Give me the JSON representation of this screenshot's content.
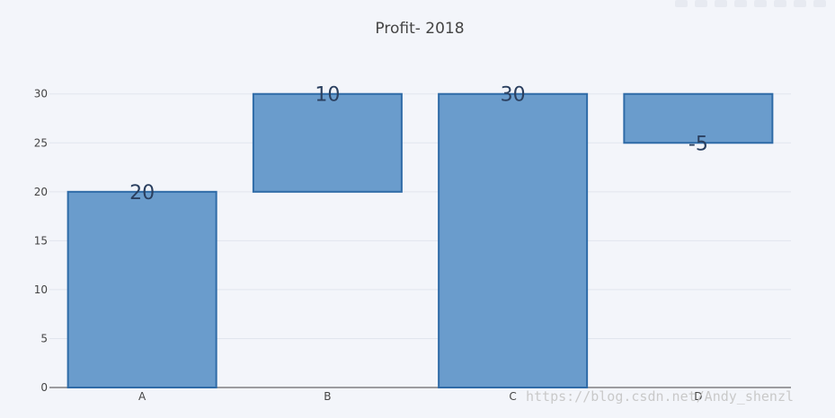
{
  "chart_data": {
    "type": "bar",
    "subtype": "waterfall",
    "title": "Profit- 2018",
    "categories": [
      "A",
      "B",
      "C",
      "D"
    ],
    "series": [
      {
        "base": [
          0,
          20,
          0,
          25
        ],
        "top": [
          20,
          30,
          30,
          30
        ],
        "labels": [
          "20",
          "10",
          "30",
          "-5"
        ]
      }
    ],
    "ylim": [
      0,
      33
    ],
    "yticks": [
      0,
      5,
      10,
      15,
      20,
      25,
      30
    ],
    "grid": true,
    "colors": {
      "bar_fill": "#6a9ccc",
      "bar_stroke": "#2f6ba7",
      "grid": "#e1e5ee",
      "axis": "#444444"
    }
  },
  "watermark": "https://blog.csdn.net/Andy_shenzl"
}
